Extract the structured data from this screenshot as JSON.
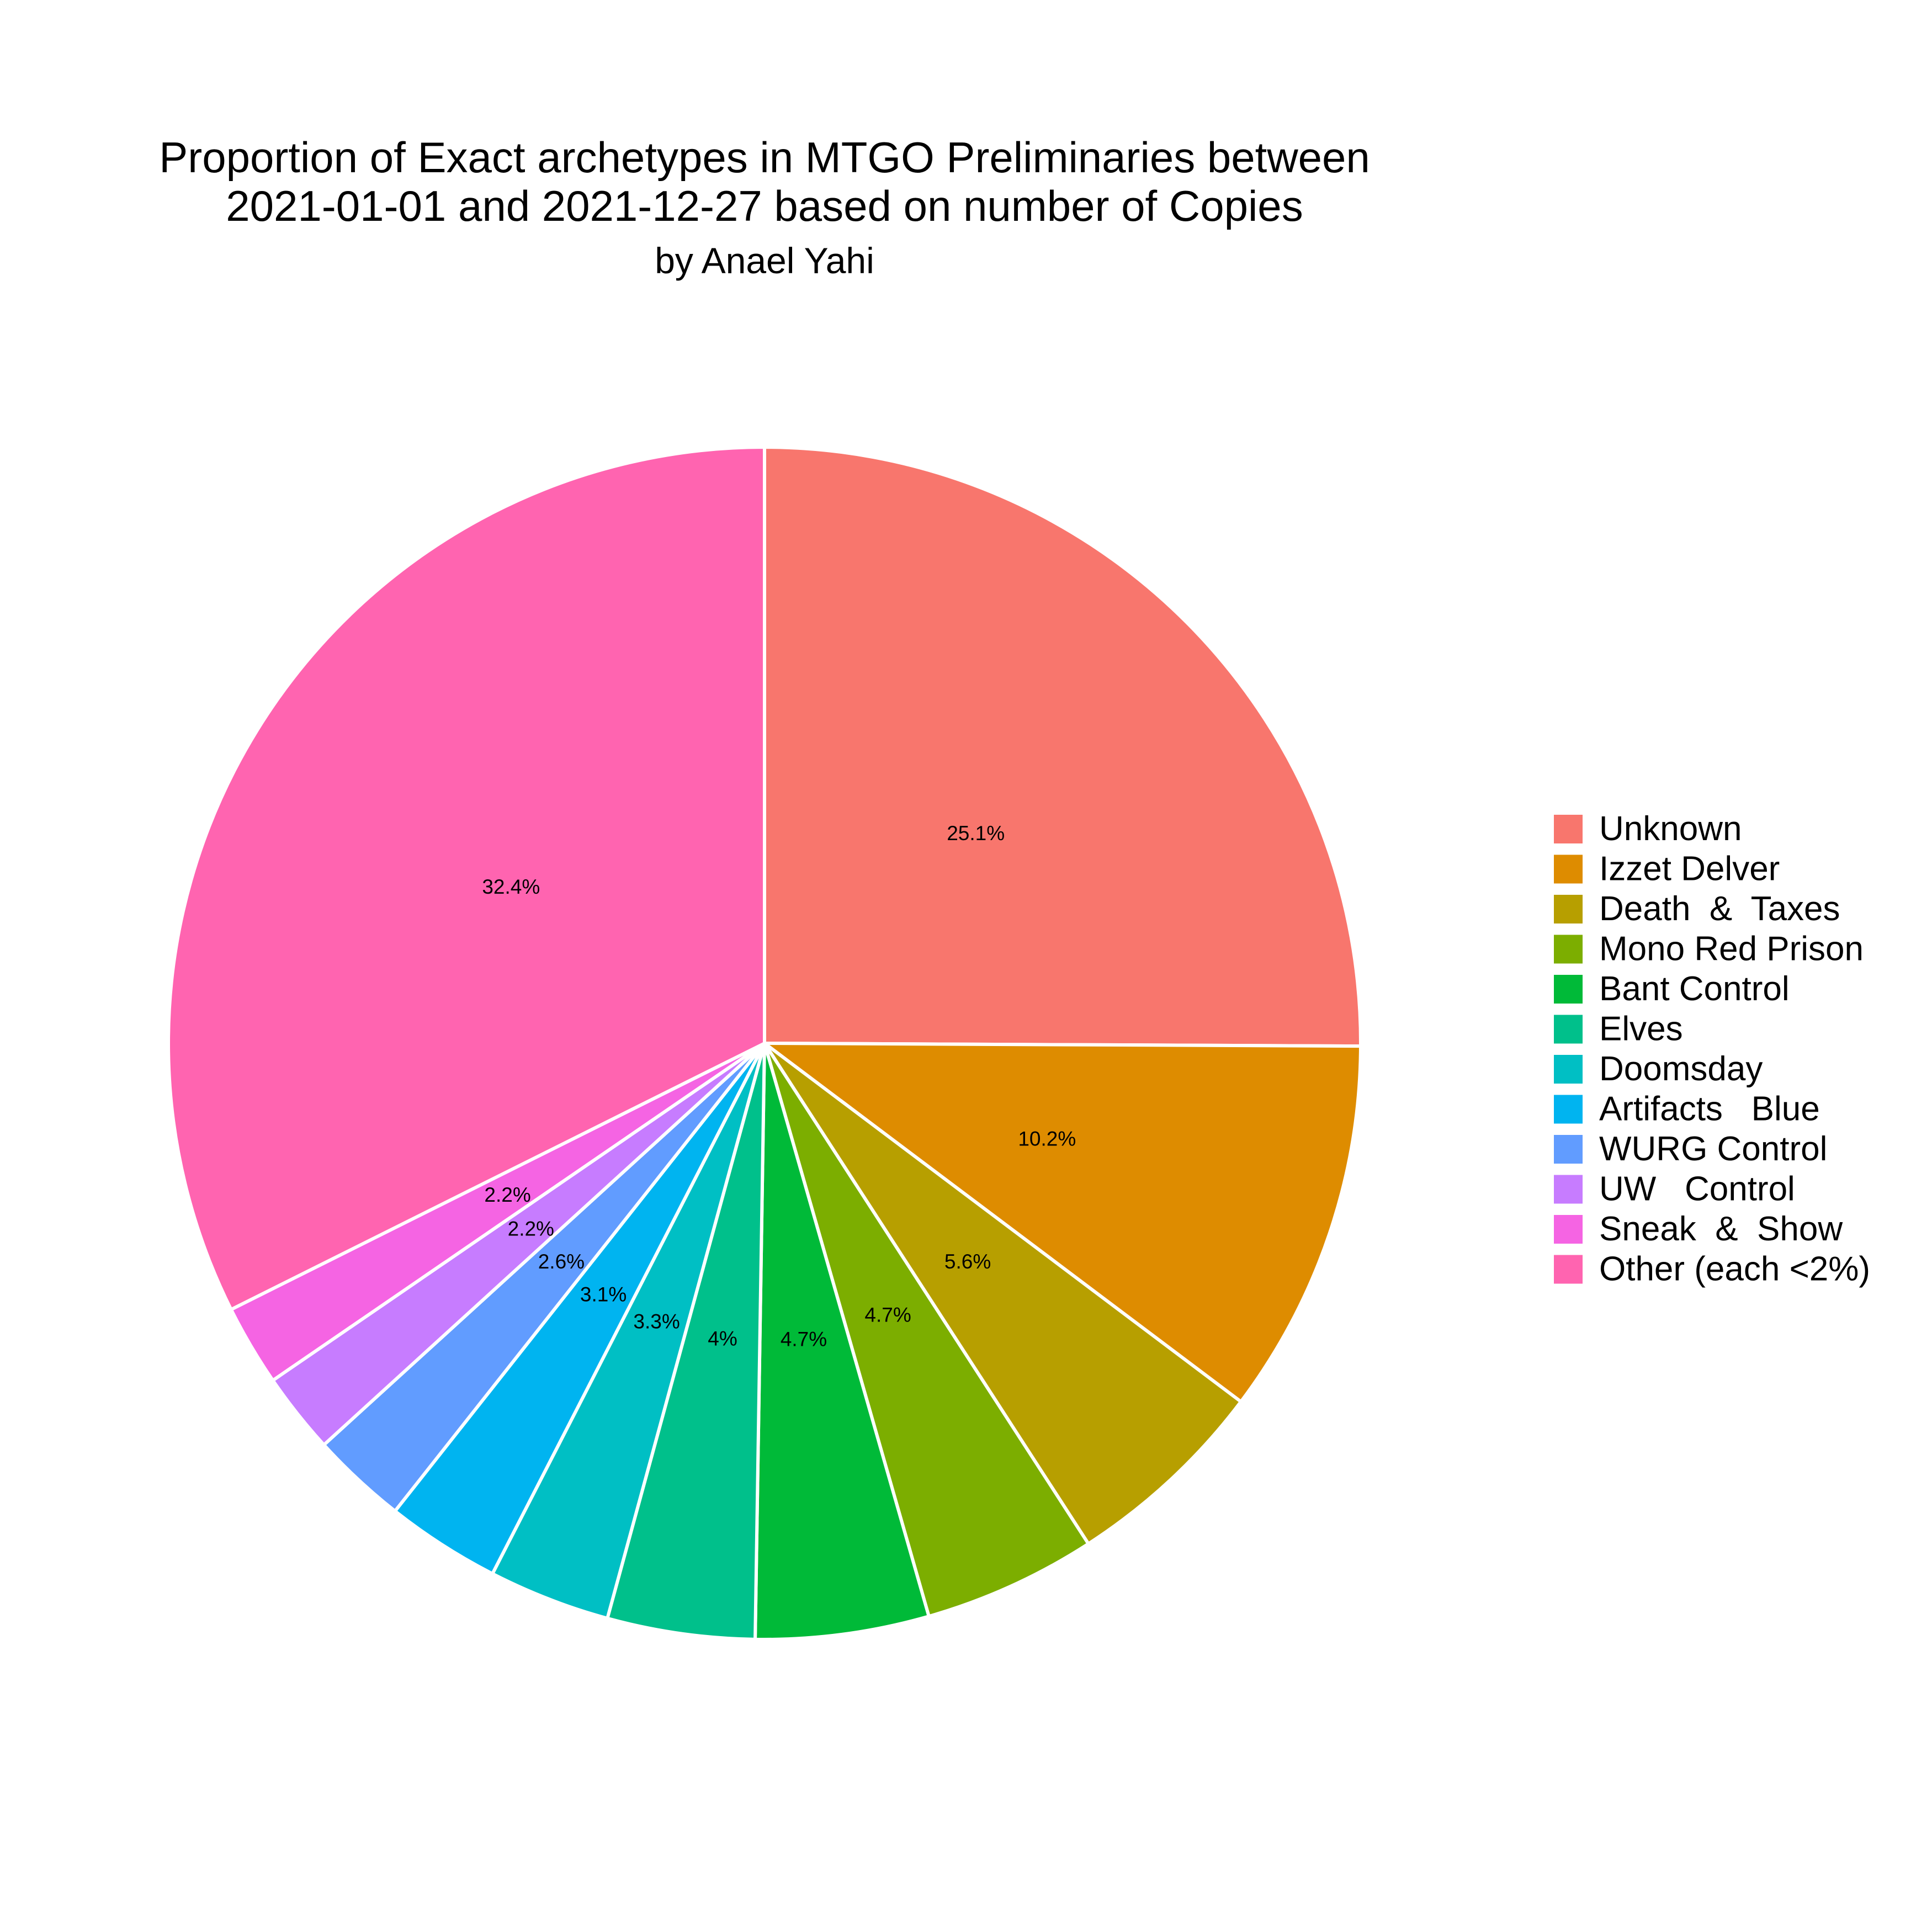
{
  "chart_data": {
    "type": "pie",
    "title_line1": "Proportion of Exact archetypes in MTGO Preliminaries between",
    "title_line2": "2021-01-01 and 2021-12-27 based on number of Copies",
    "subtitle": "by Anael Yahi",
    "legend_position": "right",
    "slices": [
      {
        "name": "Unknown",
        "value": 25.1,
        "label": "25.1%",
        "color": "#F8766D"
      },
      {
        "name": "Izzet Delver",
        "value": 10.2,
        "label": "10.2%",
        "color": "#DE8C00"
      },
      {
        "name": "Death  &  Taxes",
        "value": 5.6,
        "label": "5.6%",
        "color": "#B79F00"
      },
      {
        "name": "Mono Red Prison",
        "value": 4.7,
        "label": "4.7%",
        "color": "#7CAE00"
      },
      {
        "name": "Bant Control",
        "value": 4.7,
        "label": "4.7%",
        "color": "#00BA38"
      },
      {
        "name": "Elves",
        "value": 4.0,
        "label": "4%",
        "color": "#00C08B"
      },
      {
        "name": "Doomsday",
        "value": 3.3,
        "label": "3.3%",
        "color": "#00BFC4"
      },
      {
        "name": "Artifacts   Blue",
        "value": 3.1,
        "label": "3.1%",
        "color": "#00B4F0"
      },
      {
        "name": "WURG Control",
        "value": 2.6,
        "label": "2.6%",
        "color": "#619CFF"
      },
      {
        "name": "UW   Control",
        "value": 2.2,
        "label": "2.2%",
        "color": "#C77CFF"
      },
      {
        "name": "Sneak  &  Show",
        "value": 2.2,
        "label": "2.2%",
        "color": "#F564E3"
      },
      {
        "name": "Other (each <2%)",
        "value": 32.4,
        "label": "32.4%",
        "color": "#FF64B0"
      }
    ]
  }
}
